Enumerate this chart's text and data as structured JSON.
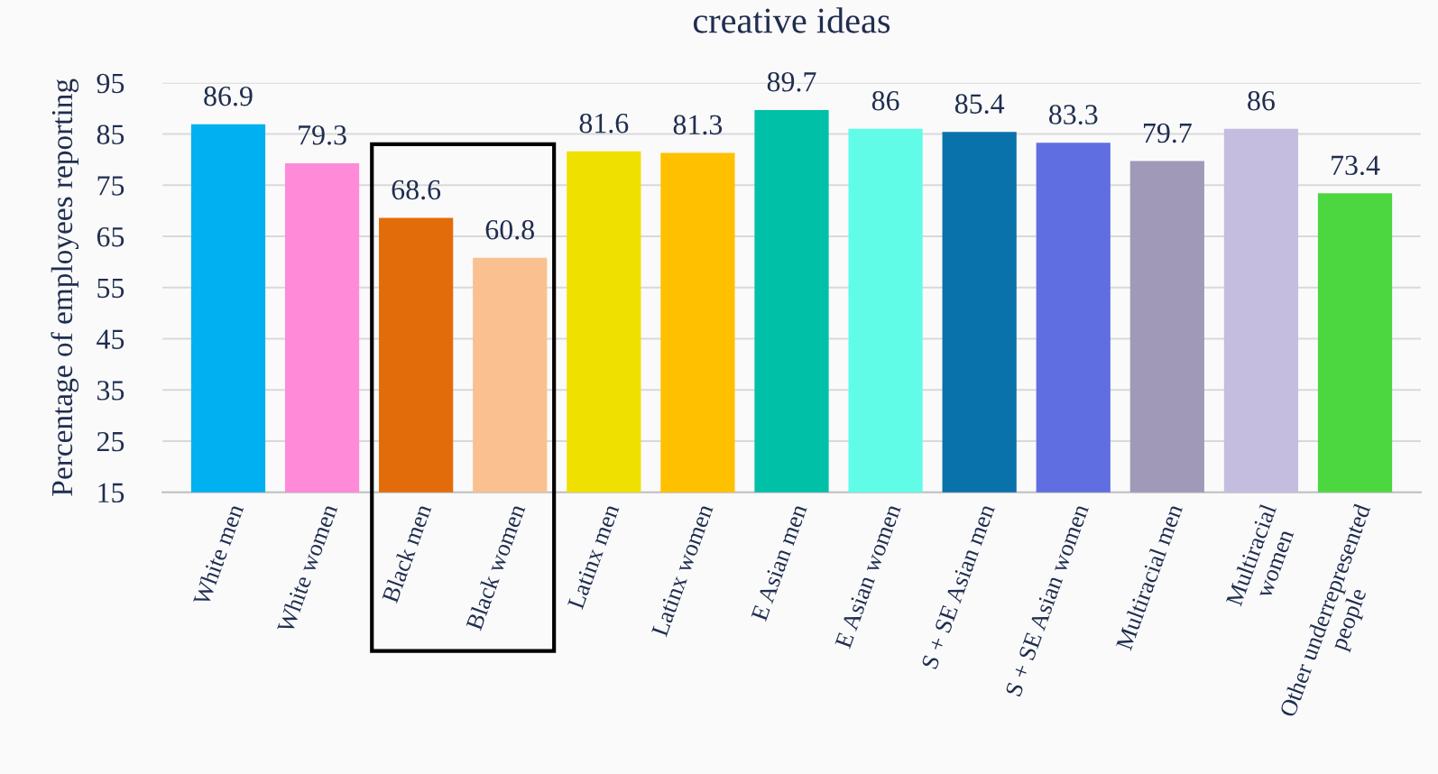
{
  "chart_data": {
    "type": "bar",
    "title": "creative ideas",
    "ylabel": "Percentage of employees reporting",
    "categories": [
      "White men",
      "White women",
      "Black men",
      "Black women",
      "Latinx men",
      "Latinx women",
      "E Asian men",
      "E Asian women",
      "S + SE Asian men",
      "S + SE Asian women",
      "Multiracial men",
      "Multiracial\nwomen",
      "Other underrepresented\npeople"
    ],
    "values": [
      86.9,
      79.3,
      68.6,
      60.8,
      81.6,
      81.3,
      89.7,
      86,
      85.4,
      83.3,
      79.7,
      86,
      73.4
    ],
    "colors": [
      "#00b0f0",
      "#ff8ad8",
      "#e36c0a",
      "#fac090",
      "#f0e000",
      "#ffc000",
      "#00c0a8",
      "#60fce8",
      "#0a72aa",
      "#5f6ee0",
      "#a09ab8",
      "#c4bde0",
      "#4cd640"
    ],
    "ylim": [
      15,
      95
    ],
    "yticks": [
      15,
      25,
      35,
      45,
      55,
      65,
      75,
      85,
      95
    ],
    "grid": "y",
    "data_labels": true
  }
}
